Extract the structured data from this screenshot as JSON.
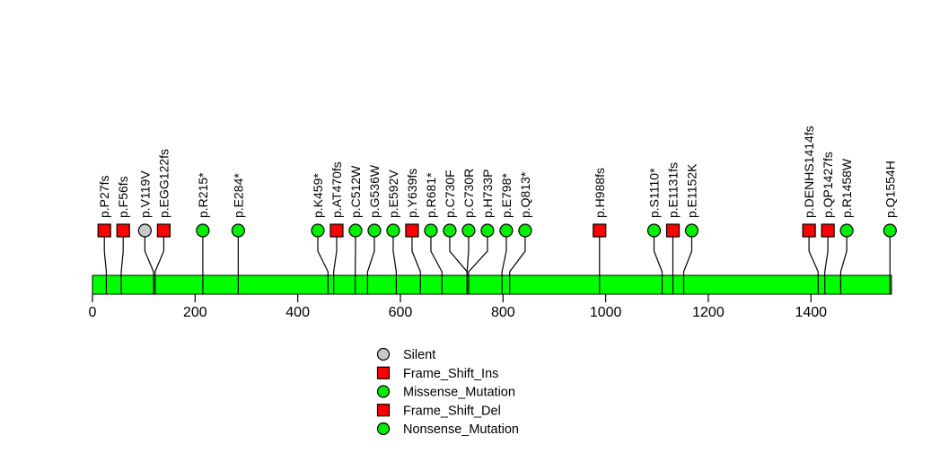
{
  "chart_data": {
    "type": "lollipop",
    "title": "",
    "protein_length": 1557,
    "protein_bar_color": "#00FF00",
    "axis_ticks": [
      0,
      200,
      400,
      600,
      800,
      1000,
      1200,
      1400
    ],
    "colors": {
      "red": "#FF0000",
      "green": "#00F000",
      "gray": "#C8C8C8",
      "stroke": "#000000"
    },
    "mutations": [
      {
        "label": "p.P27fs",
        "pos": 27,
        "shape": "square",
        "color": "#FF0000"
      },
      {
        "label": "p.F56fs",
        "pos": 56,
        "shape": "square",
        "color": "#FF0000"
      },
      {
        "label": "p.V119V",
        "pos": 119,
        "shape": "circle",
        "color": "#C8C8C8"
      },
      {
        "label": "p.EGG122fs",
        "pos": 122,
        "shape": "square",
        "color": "#FF0000"
      },
      {
        "label": "p.R215*",
        "pos": 215,
        "shape": "circle",
        "color": "#00F000"
      },
      {
        "label": "p.E284*",
        "pos": 284,
        "shape": "circle",
        "color": "#00F000"
      },
      {
        "label": "p.K459*",
        "pos": 459,
        "shape": "circle",
        "color": "#00F000"
      },
      {
        "label": "p.AT470fs",
        "pos": 470,
        "shape": "square",
        "color": "#FF0000"
      },
      {
        "label": "p.C512W",
        "pos": 512,
        "shape": "circle",
        "color": "#00F000"
      },
      {
        "label": "p.G536W",
        "pos": 536,
        "shape": "circle",
        "color": "#00F000"
      },
      {
        "label": "p.E592V",
        "pos": 592,
        "shape": "circle",
        "color": "#00F000"
      },
      {
        "label": "p.Y639fs",
        "pos": 639,
        "shape": "square",
        "color": "#FF0000"
      },
      {
        "label": "p.R681*",
        "pos": 681,
        "shape": "circle",
        "color": "#00F000"
      },
      {
        "label": "p.C730F",
        "pos": 730,
        "shape": "circle",
        "color": "#00F000"
      },
      {
        "label": "p.C730R",
        "pos": 730,
        "shape": "circle",
        "color": "#00F000"
      },
      {
        "label": "p.H733P",
        "pos": 733,
        "shape": "circle",
        "color": "#00F000"
      },
      {
        "label": "p.E798*",
        "pos": 798,
        "shape": "circle",
        "color": "#00F000"
      },
      {
        "label": "p.Q813*",
        "pos": 813,
        "shape": "circle",
        "color": "#00F000"
      },
      {
        "label": "p.H988fs",
        "pos": 988,
        "shape": "square",
        "color": "#FF0000"
      },
      {
        "label": "p.S1110*",
        "pos": 1110,
        "shape": "circle",
        "color": "#00F000"
      },
      {
        "label": "p.E1131fs",
        "pos": 1131,
        "shape": "square",
        "color": "#FF0000"
      },
      {
        "label": "p.E1152K",
        "pos": 1152,
        "shape": "circle",
        "color": "#00F000"
      },
      {
        "label": "p.DENHS1414fs",
        "pos": 1414,
        "shape": "square",
        "color": "#FF0000"
      },
      {
        "label": "p.QP1427fs",
        "pos": 1427,
        "shape": "square",
        "color": "#FF0000"
      },
      {
        "label": "p.R1458W",
        "pos": 1458,
        "shape": "circle",
        "color": "#00F000"
      },
      {
        "label": "p.Q1554H",
        "pos": 1554,
        "shape": "circle",
        "color": "#00F000"
      }
    ],
    "legend": [
      {
        "label": "Silent",
        "shape": "circle",
        "color": "#C8C8C8"
      },
      {
        "label": "Frame_Shift_Ins",
        "shape": "square",
        "color": "#FF0000"
      },
      {
        "label": "Missense_Mutation",
        "shape": "circle",
        "color": "#00F000"
      },
      {
        "label": "Frame_Shift_Del",
        "shape": "square",
        "color": "#FF0000"
      },
      {
        "label": "Nonsense_Mutation",
        "shape": "circle",
        "color": "#00F000"
      }
    ]
  }
}
